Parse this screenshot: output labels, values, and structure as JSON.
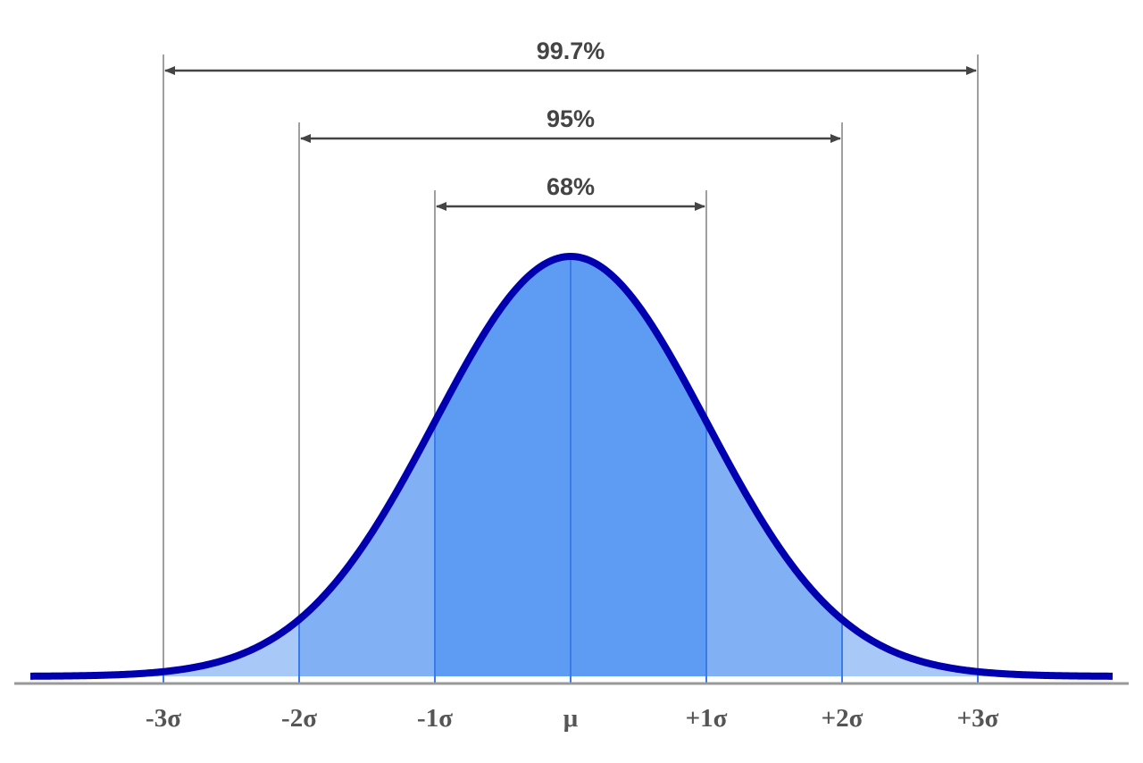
{
  "chart_data": {
    "type": "area",
    "title": "",
    "xlabel": "",
    "ylabel": "",
    "xlim": [
      -4,
      4
    ],
    "grid": false,
    "ticks": [
      {
        "x": -3,
        "label": "-3σ"
      },
      {
        "x": -2,
        "label": "-2σ"
      },
      {
        "x": -1,
        "label": "-1σ"
      },
      {
        "x": 0,
        "label": "μ"
      },
      {
        "x": 1,
        "label": "+1σ"
      },
      {
        "x": 2,
        "label": "+2σ"
      },
      {
        "x": 3,
        "label": "+3σ"
      }
    ],
    "curve": {
      "distribution": "normal",
      "mean": 0,
      "sd": 1,
      "color": "#0000b0"
    },
    "bands": [
      {
        "from": -1,
        "to": 1,
        "color": "#5e9cf3"
      },
      {
        "from": -2,
        "to": -1,
        "color": "#82b0f5"
      },
      {
        "from": 1,
        "to": 2,
        "color": "#82b0f5"
      },
      {
        "from": -4,
        "to": -2,
        "color": "#a8c8f8"
      },
      {
        "from": 2,
        "to": 4,
        "color": "#a8c8f8"
      }
    ],
    "ranges": [
      {
        "from": -1,
        "to": 1,
        "label": "68%"
      },
      {
        "from": -2,
        "to": 2,
        "label": "95%"
      },
      {
        "from": -3,
        "to": 3,
        "label": "99.7%"
      }
    ]
  }
}
